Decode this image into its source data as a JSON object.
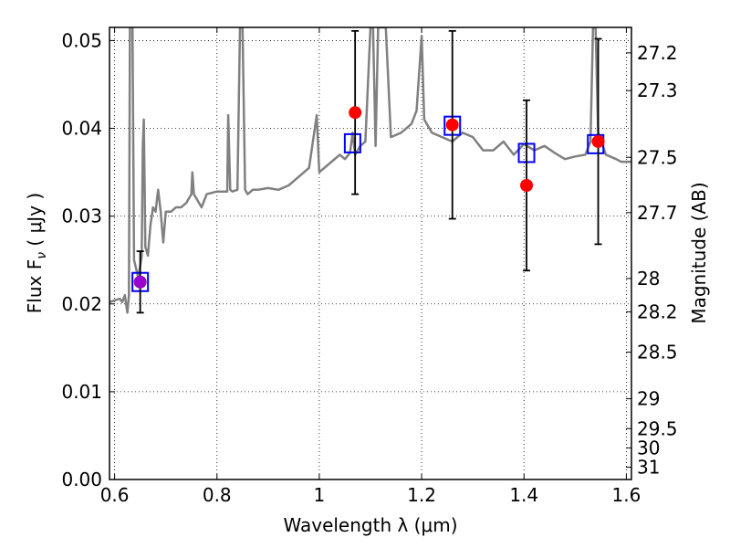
{
  "chart_data": {
    "type": "scatter",
    "xlabel": "Wavelength  λ (μm)",
    "ylabel": "Flux  F",
    "ylabel_sub": "ν",
    "ylabel_unit": "  ( μJy )",
    "y2label": "Magnitude (AB)",
    "xlim": [
      0.59,
      1.61
    ],
    "ylim": [
      0.0,
      0.0515
    ],
    "grid": true,
    "x_ticks": [
      {
        "value": 0.6,
        "label": "0.6"
      },
      {
        "value": 0.8,
        "label": "0.8"
      },
      {
        "value": 1.0,
        "label": "1"
      },
      {
        "value": 1.2,
        "label": "1.2"
      },
      {
        "value": 1.4,
        "label": "1.4"
      },
      {
        "value": 1.6,
        "label": "1.6"
      }
    ],
    "y_ticks": [
      {
        "value": 0.0,
        "label": "0.00"
      },
      {
        "value": 0.01,
        "label": "0.01"
      },
      {
        "value": 0.02,
        "label": "0.02"
      },
      {
        "value": 0.03,
        "label": "0.03"
      },
      {
        "value": 0.04,
        "label": "0.04"
      },
      {
        "value": 0.05,
        "label": "0.05"
      }
    ],
    "y2_ticks": [
      {
        "flux": 0.0486,
        "label": "27.2"
      },
      {
        "flux": 0.0443,
        "label": "27.3"
      },
      {
        "flux": 0.0367,
        "label": "27.5"
      },
      {
        "flux": 0.0304,
        "label": "27.7"
      },
      {
        "flux": 0.0229,
        "label": "28"
      },
      {
        "flux": 0.0191,
        "label": "28.2"
      },
      {
        "flux": 0.0145,
        "label": "28.5"
      },
      {
        "flux": 0.0092,
        "label": "29"
      },
      {
        "flux": 0.0058,
        "label": "29.5"
      },
      {
        "flux": 0.0036,
        "label": "30"
      },
      {
        "flux": 0.0014,
        "label": "31"
      }
    ],
    "series": [
      {
        "kind": "line",
        "color": "#808080",
        "points": [
          [
            0.59,
            0.0202
          ],
          [
            0.6,
            0.0204
          ],
          [
            0.61,
            0.0206
          ],
          [
            0.615,
            0.0202
          ],
          [
            0.62,
            0.021
          ],
          [
            0.625,
            0.019
          ],
          [
            0.628,
            0.021
          ],
          [
            0.63,
            0.0515
          ],
          [
            0.635,
            0.0515
          ],
          [
            0.638,
            0.025
          ],
          [
            0.642,
            0.024
          ],
          [
            0.646,
            0.023
          ],
          [
            0.65,
            0.0243
          ],
          [
            0.653,
            0.0255
          ],
          [
            0.655,
            0.038
          ],
          [
            0.657,
            0.041
          ],
          [
            0.66,
            0.0265
          ],
          [
            0.665,
            0.0255
          ],
          [
            0.67,
            0.029
          ],
          [
            0.675,
            0.031
          ],
          [
            0.68,
            0.0305
          ],
          [
            0.685,
            0.033
          ],
          [
            0.69,
            0.0305
          ],
          [
            0.695,
            0.027
          ],
          [
            0.7,
            0.0305
          ],
          [
            0.71,
            0.0305
          ],
          [
            0.72,
            0.031
          ],
          [
            0.73,
            0.031
          ],
          [
            0.74,
            0.0315
          ],
          [
            0.75,
            0.0325
          ],
          [
            0.752,
            0.035
          ],
          [
            0.755,
            0.0325
          ],
          [
            0.76,
            0.032
          ],
          [
            0.77,
            0.031
          ],
          [
            0.78,
            0.0325
          ],
          [
            0.8,
            0.0328
          ],
          [
            0.81,
            0.0328
          ],
          [
            0.82,
            0.0328
          ],
          [
            0.822,
            0.0415
          ],
          [
            0.826,
            0.033
          ],
          [
            0.83,
            0.0328
          ],
          [
            0.84,
            0.033
          ],
          [
            0.845,
            0.0515
          ],
          [
            0.85,
            0.0515
          ],
          [
            0.855,
            0.033
          ],
          [
            0.86,
            0.0325
          ],
          [
            0.87,
            0.033
          ],
          [
            0.88,
            0.033
          ],
          [
            0.9,
            0.0332
          ],
          [
            0.92,
            0.033
          ],
          [
            0.94,
            0.0335
          ],
          [
            0.96,
            0.0345
          ],
          [
            0.98,
            0.0355
          ],
          [
            0.995,
            0.0415
          ],
          [
            1.0,
            0.035
          ],
          [
            1.02,
            0.036
          ],
          [
            1.04,
            0.037
          ],
          [
            1.05,
            0.0365
          ],
          [
            1.06,
            0.0372
          ],
          [
            1.065,
            0.0395
          ],
          [
            1.07,
            0.037
          ],
          [
            1.08,
            0.038
          ],
          [
            1.09,
            0.0385
          ],
          [
            1.1,
            0.0515
          ],
          [
            1.105,
            0.0515
          ],
          [
            1.11,
            0.038
          ],
          [
            1.115,
            0.0515
          ],
          [
            1.13,
            0.0515
          ],
          [
            1.14,
            0.039
          ],
          [
            1.16,
            0.0395
          ],
          [
            1.18,
            0.0405
          ],
          [
            1.19,
            0.042
          ],
          [
            1.2,
            0.0505
          ],
          [
            1.205,
            0.041
          ],
          [
            1.22,
            0.0395
          ],
          [
            1.24,
            0.039
          ],
          [
            1.26,
            0.0385
          ],
          [
            1.28,
            0.0395
          ],
          [
            1.3,
            0.039
          ],
          [
            1.32,
            0.0375
          ],
          [
            1.34,
            0.0375
          ],
          [
            1.36,
            0.0385
          ],
          [
            1.38,
            0.037
          ],
          [
            1.4,
            0.0382
          ],
          [
            1.42,
            0.0375
          ],
          [
            1.44,
            0.038
          ],
          [
            1.46,
            0.0372
          ],
          [
            1.48,
            0.0365
          ],
          [
            1.5,
            0.0368
          ],
          [
            1.52,
            0.037
          ],
          [
            1.53,
            0.0385
          ],
          [
            1.535,
            0.0515
          ],
          [
            1.54,
            0.0515
          ],
          [
            1.545,
            0.0395
          ],
          [
            1.56,
            0.037
          ],
          [
            1.58,
            0.0365
          ],
          [
            1.59,
            0.0362
          ],
          [
            1.61,
            0.0362
          ]
        ]
      },
      {
        "kind": "squares",
        "color": "#0000ff",
        "points": [
          [
            0.65,
            0.0225
          ],
          [
            1.065,
            0.0383
          ],
          [
            1.26,
            0.0403
          ],
          [
            1.405,
            0.0372
          ],
          [
            1.54,
            0.0382
          ]
        ]
      },
      {
        "kind": "points",
        "color": "#ff0000",
        "points": [
          {
            "x": 0.65,
            "y": 0.0225,
            "yerr_lo": 0.0035,
            "yerr_hi": 0.0035,
            "color": "#9900cc"
          },
          {
            "x": 1.07,
            "y": 0.0418,
            "yerr_lo": 0.0093,
            "yerr_hi": 0.0093
          },
          {
            "x": 1.26,
            "y": 0.0404,
            "yerr_lo": 0.0107,
            "yerr_hi": 0.0107
          },
          {
            "x": 1.405,
            "y": 0.0335,
            "yerr_lo": 0.0097,
            "yerr_hi": 0.0097
          },
          {
            "x": 1.545,
            "y": 0.0385,
            "yerr_lo": 0.0117,
            "yerr_hi": 0.0117
          }
        ]
      }
    ]
  }
}
